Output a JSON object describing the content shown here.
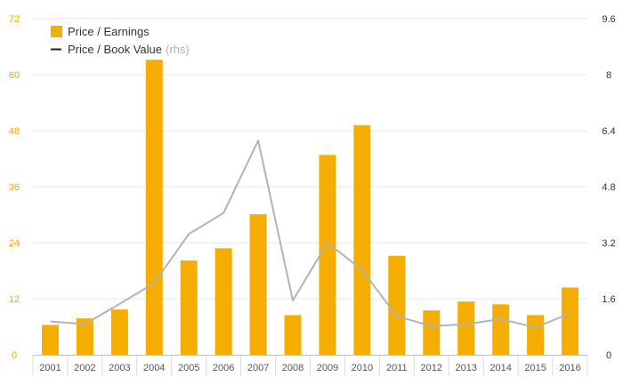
{
  "chart_data": {
    "type": "bar",
    "categories": [
      "2001",
      "2002",
      "2003",
      "2004",
      "2005",
      "2006",
      "2007",
      "2008",
      "2009",
      "2010",
      "2011",
      "2012",
      "2013",
      "2014",
      "2015",
      "2016"
    ],
    "series": [
      {
        "name": "Price / Earnings",
        "type": "bar",
        "axis": "left",
        "color": "#f5ad00",
        "values": [
          6.4,
          7.8,
          9.7,
          63.2,
          20.2,
          22.8,
          30.1,
          8.5,
          42.8,
          49.2,
          21.2,
          9.5,
          11.4,
          10.8,
          8.5,
          14.4
        ]
      },
      {
        "name": "Price / Book Value",
        "name_suffix": "(rhs)",
        "type": "line",
        "axis": "right",
        "color": "#b3b3b3",
        "values": [
          0.95,
          0.88,
          1.45,
          2.05,
          3.45,
          4.05,
          6.12,
          1.55,
          3.2,
          2.42,
          1.1,
          0.82,
          0.87,
          1.02,
          0.78,
          1.18
        ]
      }
    ],
    "y_left": {
      "ticks": [
        "0",
        "12",
        "24",
        "36",
        "48",
        "60",
        "72"
      ],
      "ylim": [
        0,
        72
      ]
    },
    "y_right": {
      "ticks": [
        "0",
        "1.6",
        "3.2",
        "4.8",
        "6.4",
        "8",
        "9.6"
      ],
      "ylim": [
        0,
        9.6
      ]
    },
    "grid": true,
    "legend_position": "top-left",
    "left_tick_color": "#f2a900",
    "right_tick_color": "#333333"
  }
}
